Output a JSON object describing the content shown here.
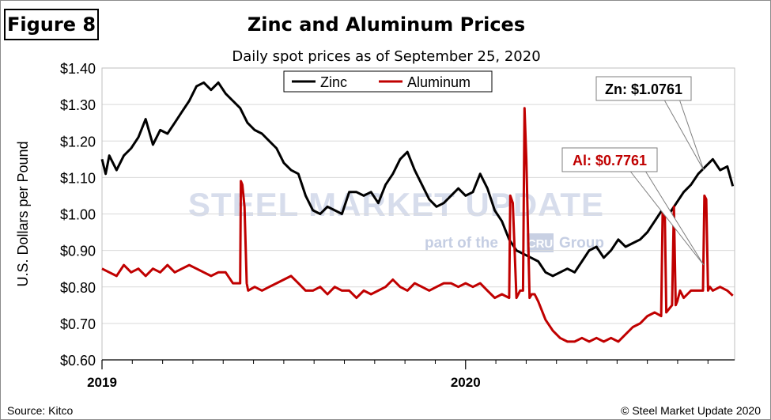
{
  "figure_label": "Figure 8",
  "source": "Source: Kitco",
  "copyright": "© Steel Market Update 2020",
  "watermark": {
    "main": "STEEL MARKET UPDATE",
    "sub_left": "part of the",
    "sub_mark": "CRU",
    "sub_right": "Group"
  },
  "colors": {
    "zinc": "#000000",
    "aluminum": "#c00000",
    "grid": "#d9d9d9",
    "watermark": "#c9d2e6"
  },
  "chart_data": {
    "type": "line",
    "title": "Zinc and Aluminum Prices",
    "subtitle": "Daily spot prices as of September  25, 2020",
    "xlabel": "",
    "ylabel": "U.S. Dollars per Pound",
    "ylim": [
      0.6,
      1.4
    ],
    "yticks": [
      0.6,
      0.7,
      0.8,
      0.9,
      1.0,
      1.1,
      1.2,
      1.3,
      1.4
    ],
    "ytick_labels": [
      "$0.60",
      "$0.70",
      "$0.80",
      "$0.90",
      "$1.00",
      "$1.10",
      "$1.20",
      "$1.30",
      "$1.40"
    ],
    "xlim": [
      2019.0,
      2020.74
    ],
    "xtick_labels": [
      {
        "x": 2019.0,
        "label": "2019"
      },
      {
        "x": 2020.0,
        "label": "2020"
      }
    ],
    "xminor_ticks": [
      2019.0833,
      2019.1667,
      2019.25,
      2019.3333,
      2019.4167,
      2019.5,
      2019.5833,
      2019.6667,
      2019.75,
      2019.8333,
      2019.9167,
      2020.0833,
      2020.1667,
      2020.25,
      2020.3333,
      2020.4167,
      2020.5,
      2020.5833,
      2020.6667
    ],
    "legend_position": "top-center",
    "series": [
      {
        "name": "Zinc",
        "color": "#000000",
        "x": [
          2019.0,
          2019.01,
          2019.02,
          2019.04,
          2019.06,
          2019.08,
          2019.1,
          2019.12,
          2019.14,
          2019.16,
          2019.18,
          2019.2,
          2019.22,
          2019.24,
          2019.26,
          2019.28,
          2019.3,
          2019.32,
          2019.34,
          2019.36,
          2019.38,
          2019.4,
          2019.42,
          2019.44,
          2019.46,
          2019.48,
          2019.5,
          2019.52,
          2019.54,
          2019.56,
          2019.58,
          2019.6,
          2019.62,
          2019.64,
          2019.66,
          2019.68,
          2019.7,
          2019.72,
          2019.74,
          2019.76,
          2019.78,
          2019.8,
          2019.82,
          2019.84,
          2019.86,
          2019.88,
          2019.9,
          2019.92,
          2019.94,
          2019.96,
          2019.98,
          2020.0,
          2020.02,
          2020.04,
          2020.06,
          2020.08,
          2020.1,
          2020.12,
          2020.14,
          2020.16,
          2020.18,
          2020.2,
          2020.22,
          2020.24,
          2020.26,
          2020.28,
          2020.3,
          2020.32,
          2020.34,
          2020.36,
          2020.38,
          2020.4,
          2020.42,
          2020.44,
          2020.46,
          2020.48,
          2020.5,
          2020.52,
          2020.54,
          2020.56,
          2020.58,
          2020.6,
          2020.62,
          2020.64,
          2020.66,
          2020.68,
          2020.7,
          2020.72,
          2020.735
        ],
        "values": [
          1.15,
          1.11,
          1.16,
          1.12,
          1.16,
          1.18,
          1.21,
          1.26,
          1.19,
          1.23,
          1.22,
          1.25,
          1.28,
          1.31,
          1.35,
          1.36,
          1.34,
          1.36,
          1.33,
          1.31,
          1.29,
          1.25,
          1.23,
          1.22,
          1.2,
          1.18,
          1.14,
          1.12,
          1.11,
          1.05,
          1.01,
          1.0,
          1.02,
          1.01,
          1.0,
          1.06,
          1.06,
          1.05,
          1.06,
          1.03,
          1.08,
          1.11,
          1.15,
          1.17,
          1.12,
          1.08,
          1.04,
          1.02,
          1.03,
          1.05,
          1.07,
          1.05,
          1.06,
          1.11,
          1.07,
          1.01,
          0.98,
          0.93,
          0.9,
          0.89,
          0.88,
          0.87,
          0.84,
          0.83,
          0.84,
          0.85,
          0.84,
          0.87,
          0.9,
          0.91,
          0.88,
          0.9,
          0.93,
          0.91,
          0.92,
          0.93,
          0.95,
          0.98,
          1.01,
          1.0,
          1.03,
          1.06,
          1.08,
          1.11,
          1.13,
          1.15,
          1.12,
          1.13,
          1.0761
        ]
      },
      {
        "name": "Aluminum",
        "color": "#c00000",
        "x": [
          2019.0,
          2019.02,
          2019.04,
          2019.06,
          2019.08,
          2019.1,
          2019.12,
          2019.14,
          2019.16,
          2019.18,
          2019.2,
          2019.22,
          2019.24,
          2019.26,
          2019.28,
          2019.3,
          2019.32,
          2019.34,
          2019.36,
          2019.38,
          2019.382,
          2019.386,
          2019.392,
          2019.398,
          2019.402,
          2019.42,
          2019.44,
          2019.46,
          2019.48,
          2019.5,
          2019.52,
          2019.54,
          2019.56,
          2019.58,
          2019.6,
          2019.62,
          2019.64,
          2019.66,
          2019.68,
          2019.7,
          2019.72,
          2019.74,
          2019.76,
          2019.78,
          2019.8,
          2019.82,
          2019.84,
          2019.86,
          2019.88,
          2019.9,
          2019.92,
          2019.94,
          2019.96,
          2019.98,
          2020.0,
          2020.02,
          2020.04,
          2020.06,
          2020.08,
          2020.1,
          2020.12,
          2020.123,
          2020.13,
          2020.14,
          2020.15,
          2020.158,
          2020.162,
          2020.167,
          2020.176,
          2020.182,
          2020.19,
          2020.2,
          2020.22,
          2020.24,
          2020.26,
          2020.28,
          2020.3,
          2020.32,
          2020.34,
          2020.36,
          2020.38,
          2020.4,
          2020.42,
          2020.44,
          2020.46,
          2020.48,
          2020.5,
          2020.52,
          2020.538,
          2020.542,
          2020.548,
          2020.552,
          2020.56,
          2020.568,
          2020.573,
          2020.578,
          2020.582,
          2020.59,
          2020.6,
          2020.61,
          2020.62,
          2020.64,
          2020.653,
          2020.657,
          2020.662,
          2020.667,
          2020.672,
          2020.68,
          2020.7,
          2020.72,
          2020.735
        ],
        "values": [
          0.85,
          0.84,
          0.83,
          0.86,
          0.84,
          0.85,
          0.83,
          0.85,
          0.84,
          0.86,
          0.84,
          0.85,
          0.86,
          0.85,
          0.84,
          0.83,
          0.84,
          0.84,
          0.81,
          0.81,
          1.09,
          1.08,
          1.02,
          0.81,
          0.79,
          0.8,
          0.79,
          0.8,
          0.81,
          0.82,
          0.83,
          0.81,
          0.79,
          0.79,
          0.8,
          0.78,
          0.8,
          0.79,
          0.79,
          0.77,
          0.79,
          0.78,
          0.79,
          0.8,
          0.82,
          0.8,
          0.79,
          0.81,
          0.8,
          0.79,
          0.8,
          0.81,
          0.81,
          0.8,
          0.81,
          0.8,
          0.81,
          0.79,
          0.77,
          0.78,
          0.77,
          1.05,
          1.03,
          0.77,
          0.79,
          0.79,
          1.29,
          1.15,
          0.77,
          0.78,
          0.78,
          0.76,
          0.71,
          0.68,
          0.66,
          0.65,
          0.65,
          0.66,
          0.65,
          0.66,
          0.65,
          0.66,
          0.65,
          0.67,
          0.69,
          0.7,
          0.72,
          0.73,
          0.72,
          1.01,
          1.0,
          0.73,
          0.74,
          0.75,
          1.02,
          0.75,
          0.76,
          0.79,
          0.77,
          0.78,
          0.79,
          0.79,
          0.79,
          1.05,
          1.04,
          0.79,
          0.8,
          0.79,
          0.8,
          0.79,
          0.7761
        ]
      }
    ],
    "annotations": [
      {
        "text": "Zn: $1.0761",
        "series": "Zinc",
        "point_x": 2020.655,
        "point_y": 1.12,
        "color": "#000000"
      },
      {
        "text": "Al: $0.7761",
        "series": "Aluminum",
        "point_x": 2020.655,
        "point_y": 0.86,
        "color": "#c00000"
      }
    ]
  }
}
